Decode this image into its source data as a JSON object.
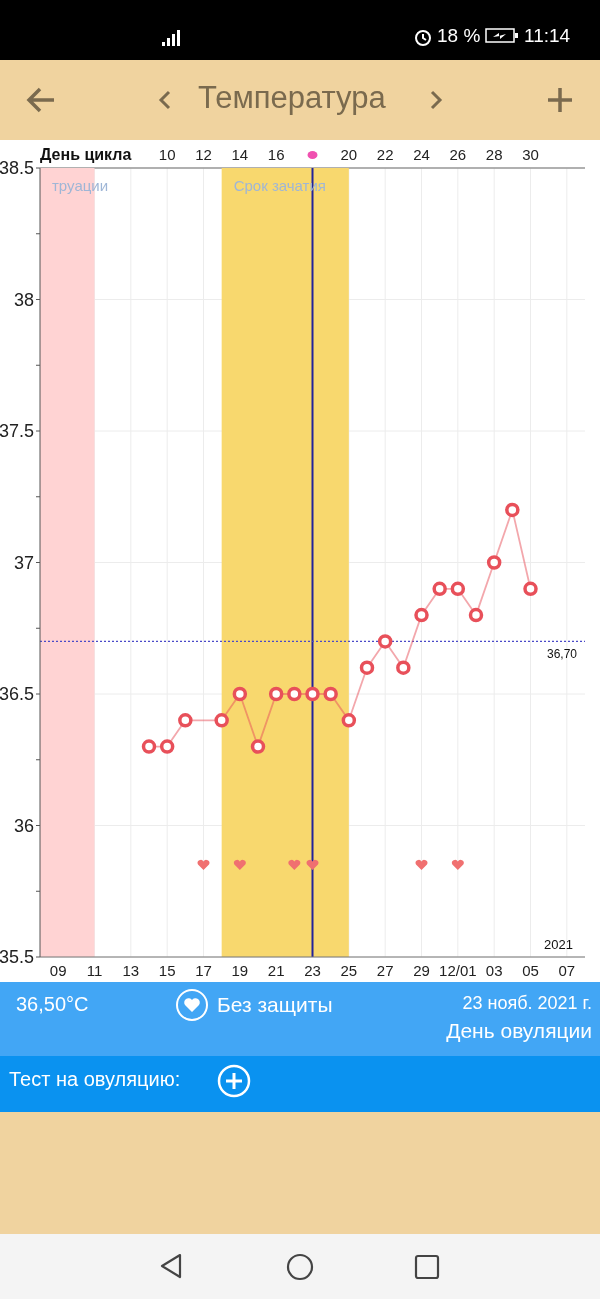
{
  "chart_data": {
    "type": "line",
    "title": "Температура",
    "x2label": "День цикла",
    "xlim": [
      "2021-11-08",
      "2021-12-08"
    ],
    "xticks": [
      {
        "value": "2021-11-09",
        "label": "09"
      },
      {
        "value": "2021-11-11",
        "label": "11"
      },
      {
        "value": "2021-11-13",
        "label": "13"
      },
      {
        "value": "2021-11-15",
        "label": "15"
      },
      {
        "value": "2021-11-17",
        "label": "17"
      },
      {
        "value": "2021-11-19",
        "label": "19"
      },
      {
        "value": "2021-11-21",
        "label": "21"
      },
      {
        "value": "2021-11-23",
        "label": "23"
      },
      {
        "value": "2021-11-25",
        "label": "25"
      },
      {
        "value": "2021-11-27",
        "label": "27"
      },
      {
        "value": "2021-11-29",
        "label": "29"
      },
      {
        "value": "2021-12-01",
        "label": "12/01"
      },
      {
        "value": "2021-12-03",
        "label": "03"
      },
      {
        "value": "2021-12-05",
        "label": "05"
      },
      {
        "value": "2021-12-07",
        "label": "07"
      }
    ],
    "x2lim": [
      3,
      33
    ],
    "x2ticks": [
      10,
      12,
      14,
      16,
      {
        "value": 18,
        "label": null
      },
      20,
      22,
      24,
      26,
      28,
      30
    ],
    "ylim": [
      35.5,
      38.5
    ],
    "yticks": [
      35.5,
      {
        "value": 35.75,
        "label": null
      },
      36,
      {
        "value": 36.25,
        "label": null
      },
      36.5,
      {
        "value": 36.75,
        "label": null
      },
      37,
      {
        "value": 37.25,
        "label": null
      },
      37.5,
      {
        "value": 37.75,
        "label": null
      },
      38,
      {
        "value": 38.25,
        "label": null
      },
      38.5
    ],
    "grid": true,
    "marker": "circle",
    "series": [
      {
        "color": "#e8505a",
        "x": [
          "2021-11-14",
          "2021-11-15",
          "2021-11-16",
          "2021-11-18",
          "2021-11-19",
          "2021-11-20",
          "2021-11-21",
          "2021-11-22",
          "2021-11-23",
          "2021-11-24",
          "2021-11-25",
          "2021-11-26",
          "2021-11-27",
          "2021-11-28",
          "2021-11-29",
          "2021-11-30",
          "2021-12-01",
          "2021-12-02",
          "2021-12-03",
          "2021-12-04",
          "2021-12-05"
        ],
        "values": [
          36.3,
          36.3,
          36.4,
          36.4,
          36.5,
          36.3,
          36.5,
          36.5,
          36.5,
          36.5,
          36.4,
          36.6,
          36.7,
          36.6,
          36.8,
          36.9,
          36.9,
          36.8,
          37.0,
          37.2,
          36.9
        ]
      },
      {
        "type": "scatter",
        "color": "#f07070",
        "x": [
          "2021-11-17",
          "2021-11-19",
          "2021-11-22",
          "2021-11-23",
          "2021-11-29",
          "2021-12-01"
        ],
        "values": [
          35.85,
          35.85,
          35.85,
          35.85,
          35.85,
          35.85
        ]
      }
    ],
    "bands": [
      {
        "axis": "x",
        "from": "2021-11-08",
        "to": "2021-11-11",
        "label": "труации",
        "color": "#ffd3d3"
      },
      {
        "axis": "x",
        "from": "2021-11-18",
        "to": "2021-11-25",
        "label": "Срок зачатия",
        "color": "#f8d86e"
      }
    ],
    "ref_lines": [
      {
        "axis": "x",
        "value": "2021-11-23",
        "color": "#22229a",
        "line_style": "solid"
      },
      {
        "axis": "y",
        "value": 36.7,
        "label": "36,70",
        "color": "#4a4ac8",
        "line_style": "dotted"
      }
    ],
    "annotations": [
      "2021",
      "36,50°C",
      "Без защиты",
      "23 нояб. 2021 г.",
      "День овуляции",
      "Тест на овуляцию:",
      "18 %",
      "11:14"
    ]
  }
}
